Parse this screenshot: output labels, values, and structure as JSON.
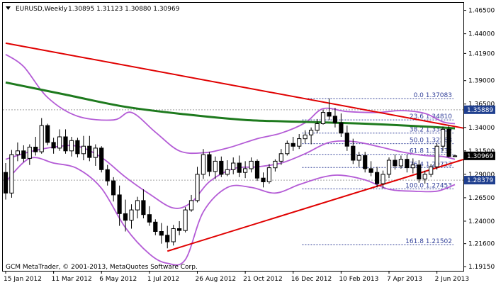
{
  "header": {
    "symbol": "EURUSD,Weekly",
    "ohlc": "1.30895 1.31123 1.30880 1.30969"
  },
  "footer": {
    "copyright": "GCM MetaTrader, © 2001-2013, MetaQuotes Software Corp."
  },
  "colors": {
    "background": "#ffffff",
    "candle": "#000000",
    "trendline": "#e00000",
    "ma_long": "#1e7a1e",
    "bollinger": "#b45cd6",
    "fib": "#33419a",
    "grid_dotted": "#a0a0a0",
    "tag_dark": "#000000",
    "tag_blue": "#1f3f8f"
  },
  "chart_data": {
    "type": "candlestick",
    "y_axis_ticks": [
      "1.46500",
      "1.44000",
      "1.41900",
      "1.39000",
      "1.36500",
      "1.34000",
      "1.31500",
      "1.29000",
      "1.26500",
      "1.24000",
      "1.21600",
      "1.19150"
    ],
    "y_axis_tick_values": [
      1.465,
      1.44,
      1.419,
      1.39,
      1.365,
      1.34,
      1.315,
      1.29,
      1.265,
      1.24,
      1.216,
      1.1915
    ],
    "ylim": [
      1.187,
      1.473
    ],
    "x_axis_labels": [
      "15 Jan 2012",
      "11 Mar 2012",
      "6 May 2012",
      "1 Jul 2012",
      "26 Aug 2012",
      "21 Oct 2012",
      "16 Dec 2012",
      "10 Feb 2013",
      "7 Apr 2013",
      "2 Jun 2013"
    ],
    "x_axis_label_index": [
      0,
      8,
      16,
      24,
      32,
      40,
      48,
      56,
      64,
      72
    ],
    "candles": [
      {
        "o": 1.292,
        "h": 1.302,
        "l": 1.263,
        "c": 1.27
      },
      {
        "o": 1.27,
        "h": 1.316,
        "l": 1.265,
        "c": 1.311
      },
      {
        "o": 1.311,
        "h": 1.324,
        "l": 1.304,
        "c": 1.315
      },
      {
        "o": 1.315,
        "h": 1.321,
        "l": 1.303,
        "c": 1.307
      },
      {
        "o": 1.307,
        "h": 1.322,
        "l": 1.3,
        "c": 1.319
      },
      {
        "o": 1.319,
        "h": 1.33,
        "l": 1.31,
        "c": 1.314
      },
      {
        "o": 1.314,
        "h": 1.35,
        "l": 1.312,
        "c": 1.342
      },
      {
        "o": 1.342,
        "h": 1.344,
        "l": 1.321,
        "c": 1.324
      },
      {
        "o": 1.324,
        "h": 1.329,
        "l": 1.312,
        "c": 1.318
      },
      {
        "o": 1.318,
        "h": 1.338,
        "l": 1.315,
        "c": 1.33
      },
      {
        "o": 1.33,
        "h": 1.338,
        "l": 1.312,
        "c": 1.315
      },
      {
        "o": 1.315,
        "h": 1.33,
        "l": 1.309,
        "c": 1.326
      },
      {
        "o": 1.326,
        "h": 1.329,
        "l": 1.308,
        "c": 1.312
      },
      {
        "o": 1.312,
        "h": 1.331,
        "l": 1.305,
        "c": 1.32
      },
      {
        "o": 1.32,
        "h": 1.331,
        "l": 1.304,
        "c": 1.308
      },
      {
        "o": 1.308,
        "h": 1.322,
        "l": 1.299,
        "c": 1.318
      },
      {
        "o": 1.318,
        "h": 1.32,
        "l": 1.292,
        "c": 1.295
      },
      {
        "o": 1.295,
        "h": 1.3,
        "l": 1.278,
        "c": 1.283
      },
      {
        "o": 1.283,
        "h": 1.287,
        "l": 1.261,
        "c": 1.268
      },
      {
        "o": 1.268,
        "h": 1.278,
        "l": 1.235,
        "c": 1.248
      },
      {
        "o": 1.248,
        "h": 1.263,
        "l": 1.229,
        "c": 1.241
      },
      {
        "o": 1.241,
        "h": 1.258,
        "l": 1.232,
        "c": 1.252
      },
      {
        "o": 1.252,
        "h": 1.266,
        "l": 1.243,
        "c": 1.262
      },
      {
        "o": 1.262,
        "h": 1.274,
        "l": 1.243,
        "c": 1.247
      },
      {
        "o": 1.247,
        "h": 1.256,
        "l": 1.235,
        "c": 1.239
      },
      {
        "o": 1.239,
        "h": 1.242,
        "l": 1.225,
        "c": 1.229
      },
      {
        "o": 1.229,
        "h": 1.238,
        "l": 1.216,
        "c": 1.225
      },
      {
        "o": 1.225,
        "h": 1.235,
        "l": 1.211,
        "c": 1.218
      },
      {
        "o": 1.218,
        "h": 1.236,
        "l": 1.214,
        "c": 1.232
      },
      {
        "o": 1.232,
        "h": 1.24,
        "l": 1.225,
        "c": 1.23
      },
      {
        "o": 1.23,
        "h": 1.255,
        "l": 1.228,
        "c": 1.252
      },
      {
        "o": 1.252,
        "h": 1.268,
        "l": 1.25,
        "c": 1.262
      },
      {
        "o": 1.262,
        "h": 1.298,
        "l": 1.26,
        "c": 1.29
      },
      {
        "o": 1.29,
        "h": 1.317,
        "l": 1.285,
        "c": 1.311
      },
      {
        "o": 1.311,
        "h": 1.314,
        "l": 1.288,
        "c": 1.293
      },
      {
        "o": 1.293,
        "h": 1.309,
        "l": 1.285,
        "c": 1.304
      },
      {
        "o": 1.304,
        "h": 1.309,
        "l": 1.287,
        "c": 1.29
      },
      {
        "o": 1.29,
        "h": 1.305,
        "l": 1.288,
        "c": 1.295
      },
      {
        "o": 1.295,
        "h": 1.308,
        "l": 1.29,
        "c": 1.302
      },
      {
        "o": 1.302,
        "h": 1.31,
        "l": 1.287,
        "c": 1.292
      },
      {
        "o": 1.292,
        "h": 1.304,
        "l": 1.286,
        "c": 1.296
      },
      {
        "o": 1.296,
        "h": 1.308,
        "l": 1.292,
        "c": 1.304
      },
      {
        "o": 1.304,
        "h": 1.306,
        "l": 1.283,
        "c": 1.286
      },
      {
        "o": 1.286,
        "h": 1.292,
        "l": 1.276,
        "c": 1.282
      },
      {
        "o": 1.282,
        "h": 1.301,
        "l": 1.28,
        "c": 1.297
      },
      {
        "o": 1.297,
        "h": 1.306,
        "l": 1.293,
        "c": 1.304
      },
      {
        "o": 1.304,
        "h": 1.317,
        "l": 1.3,
        "c": 1.312
      },
      {
        "o": 1.312,
        "h": 1.326,
        "l": 1.31,
        "c": 1.323
      },
      {
        "o": 1.323,
        "h": 1.33,
        "l": 1.315,
        "c": 1.32
      },
      {
        "o": 1.32,
        "h": 1.333,
        "l": 1.317,
        "c": 1.328
      },
      {
        "o": 1.328,
        "h": 1.337,
        "l": 1.323,
        "c": 1.332
      },
      {
        "o": 1.332,
        "h": 1.34,
        "l": 1.322,
        "c": 1.337
      },
      {
        "o": 1.337,
        "h": 1.349,
        "l": 1.334,
        "c": 1.344
      },
      {
        "o": 1.344,
        "h": 1.359,
        "l": 1.343,
        "c": 1.356
      },
      {
        "o": 1.356,
        "h": 1.371,
        "l": 1.348,
        "c": 1.352
      },
      {
        "o": 1.352,
        "h": 1.361,
        "l": 1.34,
        "c": 1.345
      },
      {
        "o": 1.345,
        "h": 1.355,
        "l": 1.33,
        "c": 1.334
      },
      {
        "o": 1.334,
        "h": 1.342,
        "l": 1.315,
        "c": 1.32
      },
      {
        "o": 1.32,
        "h": 1.328,
        "l": 1.301,
        "c": 1.305
      },
      {
        "o": 1.305,
        "h": 1.314,
        "l": 1.298,
        "c": 1.31
      },
      {
        "o": 1.31,
        "h": 1.314,
        "l": 1.292,
        "c": 1.296
      },
      {
        "o": 1.296,
        "h": 1.304,
        "l": 1.288,
        "c": 1.292
      },
      {
        "o": 1.292,
        "h": 1.298,
        "l": 1.276,
        "c": 1.28
      },
      {
        "o": 1.28,
        "h": 1.294,
        "l": 1.275,
        "c": 1.29
      },
      {
        "o": 1.29,
        "h": 1.308,
        "l": 1.286,
        "c": 1.305
      },
      {
        "o": 1.305,
        "h": 1.311,
        "l": 1.295,
        "c": 1.299
      },
      {
        "o": 1.299,
        "h": 1.31,
        "l": 1.296,
        "c": 1.306
      },
      {
        "o": 1.306,
        "h": 1.311,
        "l": 1.292,
        "c": 1.297
      },
      {
        "o": 1.297,
        "h": 1.307,
        "l": 1.291,
        "c": 1.3
      },
      {
        "o": 1.3,
        "h": 1.305,
        "l": 1.281,
        "c": 1.285
      },
      {
        "o": 1.285,
        "h": 1.294,
        "l": 1.28,
        "c": 1.29
      },
      {
        "o": 1.29,
        "h": 1.301,
        "l": 1.287,
        "c": 1.298
      },
      {
        "o": 1.298,
        "h": 1.323,
        "l": 1.295,
        "c": 1.32
      },
      {
        "o": 1.32,
        "h": 1.341,
        "l": 1.315,
        "c": 1.338
      },
      {
        "o": 1.338,
        "h": 1.342,
        "l": 1.308,
        "c": 1.309
      },
      {
        "o": 1.3089,
        "h": 1.3112,
        "l": 1.3088,
        "c": 1.3097
      }
    ],
    "moving_average": [
      {
        "i": 0,
        "v": 1.388
      },
      {
        "i": 10,
        "v": 1.375
      },
      {
        "i": 20,
        "v": 1.362
      },
      {
        "i": 30,
        "v": 1.354
      },
      {
        "i": 40,
        "v": 1.348
      },
      {
        "i": 50,
        "v": 1.346
      },
      {
        "i": 60,
        "v": 1.344
      },
      {
        "i": 70,
        "v": 1.341
      },
      {
        "i": 75,
        "v": 1.339
      }
    ],
    "bollinger_upper": [
      {
        "i": 0,
        "v": 1.418
      },
      {
        "i": 3,
        "v": 1.405
      },
      {
        "i": 7,
        "v": 1.372
      },
      {
        "i": 12,
        "v": 1.352
      },
      {
        "i": 18,
        "v": 1.348
      },
      {
        "i": 21,
        "v": 1.356
      },
      {
        "i": 25,
        "v": 1.335
      },
      {
        "i": 29,
        "v": 1.315
      },
      {
        "i": 33,
        "v": 1.313
      },
      {
        "i": 37,
        "v": 1.318
      },
      {
        "i": 42,
        "v": 1.328
      },
      {
        "i": 46,
        "v": 1.334
      },
      {
        "i": 50,
        "v": 1.345
      },
      {
        "i": 53,
        "v": 1.36
      },
      {
        "i": 57,
        "v": 1.357
      },
      {
        "i": 62,
        "v": 1.356
      },
      {
        "i": 66,
        "v": 1.358
      },
      {
        "i": 70,
        "v": 1.355
      },
      {
        "i": 73,
        "v": 1.346
      },
      {
        "i": 75,
        "v": 1.344
      }
    ],
    "bollinger_middle": [
      {
        "i": 0,
        "v": 1.306
      },
      {
        "i": 4,
        "v": 1.314
      },
      {
        "i": 8,
        "v": 1.319
      },
      {
        "i": 12,
        "v": 1.32
      },
      {
        "i": 16,
        "v": 1.308
      },
      {
        "i": 20,
        "v": 1.287
      },
      {
        "i": 24,
        "v": 1.269
      },
      {
        "i": 28,
        "v": 1.254
      },
      {
        "i": 31,
        "v": 1.26
      },
      {
        "i": 34,
        "v": 1.282
      },
      {
        "i": 38,
        "v": 1.296
      },
      {
        "i": 42,
        "v": 1.298
      },
      {
        "i": 46,
        "v": 1.302
      },
      {
        "i": 50,
        "v": 1.312
      },
      {
        "i": 54,
        "v": 1.324
      },
      {
        "i": 58,
        "v": 1.325
      },
      {
        "i": 62,
        "v": 1.32
      },
      {
        "i": 66,
        "v": 1.314
      },
      {
        "i": 70,
        "v": 1.31
      },
      {
        "i": 73,
        "v": 1.309
      },
      {
        "i": 75,
        "v": 1.306
      }
    ],
    "bollinger_lower": [
      {
        "i": 0,
        "v": 1.282
      },
      {
        "i": 4,
        "v": 1.307
      },
      {
        "i": 8,
        "v": 1.302
      },
      {
        "i": 12,
        "v": 1.296
      },
      {
        "i": 16,
        "v": 1.275
      },
      {
        "i": 20,
        "v": 1.233
      },
      {
        "i": 24,
        "v": 1.205
      },
      {
        "i": 27,
        "v": 1.195
      },
      {
        "i": 30,
        "v": 1.199
      },
      {
        "i": 33,
        "v": 1.25
      },
      {
        "i": 37,
        "v": 1.276
      },
      {
        "i": 41,
        "v": 1.276
      },
      {
        "i": 45,
        "v": 1.27
      },
      {
        "i": 49,
        "v": 1.279
      },
      {
        "i": 53,
        "v": 1.287
      },
      {
        "i": 56,
        "v": 1.289
      },
      {
        "i": 60,
        "v": 1.284
      },
      {
        "i": 64,
        "v": 1.274
      },
      {
        "i": 68,
        "v": 1.272
      },
      {
        "i": 72,
        "v": 1.272
      },
      {
        "i": 75,
        "v": 1.279
      }
    ],
    "trendlines": [
      {
        "i1": 0,
        "v1": 1.43,
        "i2": 75,
        "v2": 1.341
      },
      {
        "i1": 27,
        "v1": 1.208,
        "i2": 75,
        "v2": 1.303
      }
    ],
    "fib_levels": [
      {
        "label": "0.0 1.37083",
        "value": 1.37083
      },
      {
        "label": "23.6 1.34810",
        "value": 1.3481
      },
      {
        "label": "38.2 1.33400",
        "value": 1.334
      },
      {
        "label": "50.0 1.32268",
        "value": 1.32268
      },
      {
        "label": "61.8 1.31132",
        "value": 1.31132
      },
      {
        "label": "76.4 1.29723",
        "value": 1.29723
      },
      {
        "label": "100.0 1.27453",
        "value": 1.27453
      },
      {
        "label": "161.8 1.21502",
        "value": 1.21502
      }
    ],
    "hlines": [
      {
        "value": 1.35889
      },
      {
        "value": 1.28379
      }
    ],
    "price_tags": [
      {
        "label": "1.35889",
        "value": 1.35889,
        "style": "blue"
      },
      {
        "label": "1.30969",
        "value": 1.30969,
        "style": "dark"
      },
      {
        "label": "1.28379",
        "value": 1.28379,
        "style": "blue"
      }
    ]
  }
}
